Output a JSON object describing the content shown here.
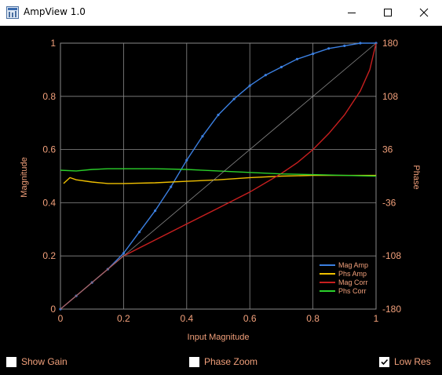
{
  "window": {
    "title": "AmpView 1.0",
    "icons": [
      "app-icon",
      "minimize-icon",
      "maximize-icon",
      "close-icon"
    ]
  },
  "colors": {
    "background": "#000000",
    "axis_text": "#f2a07b",
    "grid": "#8a8a8a",
    "mag_amp": "#3b7fe0",
    "phs_amp": "#f0c000",
    "mag_corr": "#c81f1f",
    "phs_corr": "#2bd12b"
  },
  "checkboxes": [
    {
      "label": "Show Gain",
      "checked": false
    },
    {
      "label": "Phase Zoom",
      "checked": false
    },
    {
      "label": "Low Res",
      "checked": true
    }
  ],
  "chart_data": {
    "type": "line",
    "xlabel": "Input Magnitude",
    "ylabel": "Magnitude",
    "y2label": "Phase",
    "xlim": [
      0,
      1
    ],
    "ylim": [
      0,
      1
    ],
    "y2lim": [
      -180,
      180
    ],
    "xticks": [
      "0",
      "0.2",
      "0.4",
      "0.6",
      "0.8",
      "1"
    ],
    "yticks": [
      "0",
      "0.2",
      "0.4",
      "0.6",
      "0.8",
      "1"
    ],
    "y2ticks": [
      "-180",
      "-108",
      "-36",
      "36",
      "108",
      "180"
    ],
    "grid": true,
    "legend_position": "bottom-right",
    "series": [
      {
        "name": "Mag Amp",
        "axis": "left",
        "x": [
          0,
          0.05,
          0.1,
          0.15,
          0.2,
          0.25,
          0.3,
          0.35,
          0.4,
          0.45,
          0.5,
          0.55,
          0.6,
          0.65,
          0.7,
          0.75,
          0.8,
          0.85,
          0.9,
          0.95,
          1.0
        ],
        "y": [
          0,
          0.05,
          0.1,
          0.15,
          0.21,
          0.29,
          0.37,
          0.46,
          0.56,
          0.65,
          0.73,
          0.79,
          0.84,
          0.88,
          0.91,
          0.94,
          0.96,
          0.98,
          0.99,
          1.0,
          1.0
        ]
      },
      {
        "name": "Phs Amp",
        "axis": "right",
        "x": [
          0.01,
          0.03,
          0.05,
          0.1,
          0.15,
          0.2,
          0.3,
          0.4,
          0.5,
          0.6,
          0.7,
          0.8,
          0.9,
          1.0
        ],
        "y": [
          -10,
          -2,
          -5,
          -8,
          -10,
          -10,
          -9,
          -7,
          -5,
          -2,
          0,
          1,
          1,
          1
        ]
      },
      {
        "name": "Mag Corr",
        "axis": "left",
        "x": [
          0,
          0.1,
          0.2,
          0.3,
          0.4,
          0.5,
          0.6,
          0.7,
          0.75,
          0.8,
          0.85,
          0.9,
          0.95,
          0.98,
          1.0
        ],
        "y": [
          0,
          0.1,
          0.2,
          0.26,
          0.32,
          0.38,
          0.44,
          0.51,
          0.55,
          0.6,
          0.66,
          0.73,
          0.82,
          0.9,
          1.0
        ]
      },
      {
        "name": "Phs Corr",
        "axis": "right",
        "x": [
          0,
          0.05,
          0.1,
          0.15,
          0.2,
          0.3,
          0.4,
          0.5,
          0.6,
          0.7,
          0.8,
          0.9,
          1.0
        ],
        "y": [
          8,
          7,
          9,
          10,
          10,
          10,
          9,
          7,
          5,
          3,
          2,
          1,
          0
        ]
      },
      {
        "name": "",
        "axis": "left",
        "x": [
          0,
          1
        ],
        "y": [
          0,
          1
        ]
      }
    ]
  }
}
